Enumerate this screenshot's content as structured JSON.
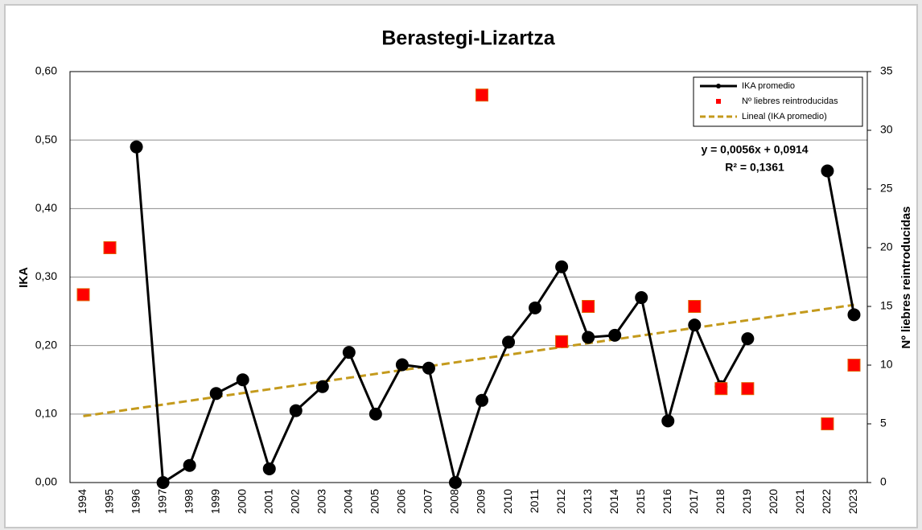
{
  "chart_data": {
    "type": "line",
    "title": "Berastegi-Lizartza",
    "y_label": "IKA",
    "y2_label": "Nº liebres reintroducidas",
    "categories": [
      "1994",
      "1995",
      "1996",
      "1997",
      "1998",
      "1999",
      "2000",
      "2001",
      "2002",
      "2003",
      "2004",
      "2005",
      "2006",
      "2007",
      "2008",
      "2009",
      "2010",
      "2011",
      "2012",
      "2013",
      "2014",
      "2015",
      "2016",
      "2017",
      "2018",
      "2019",
      "2020",
      "2021",
      "2022",
      "2023"
    ],
    "series": [
      {
        "name": "IKA promedio",
        "color": "#000000",
        "values": [
          null,
          null,
          0.49,
          0.0,
          0.025,
          0.13,
          0.15,
          0.02,
          0.105,
          0.14,
          0.19,
          0.1,
          0.172,
          0.167,
          0.0,
          0.12,
          0.205,
          0.255,
          0.315,
          0.212,
          0.215,
          0.27,
          0.09,
          0.23,
          0.14,
          0.21,
          null,
          null,
          0.455,
          0.245
        ]
      },
      {
        "name": "Nº liebres reintroducidas",
        "color": "#ff0000",
        "axis": "y2",
        "values": [
          16,
          20,
          null,
          null,
          null,
          null,
          null,
          null,
          null,
          null,
          null,
          null,
          null,
          null,
          null,
          33,
          null,
          null,
          12,
          15,
          null,
          null,
          null,
          15,
          8,
          8,
          null,
          null,
          5,
          10
        ]
      }
    ],
    "trend": {
      "name": "Lineal (IKA promedio)",
      "color": "#c49a1c",
      "slope": 0.0056,
      "intercept": 0.0914,
      "equation": "y = 0,0056x + 0,0914",
      "r2": "R² = 0,1361",
      "label_color": "#9a9636"
    },
    "ylim": [
      0,
      0.6
    ],
    "yticks": [
      {
        "value": 0,
        "label": "0,00"
      },
      {
        "value": 0.1,
        "label": "0,10"
      },
      {
        "value": 0.2,
        "label": "0,20"
      },
      {
        "value": 0.3,
        "label": "0,30"
      },
      {
        "value": 0.4,
        "label": "0,40"
      },
      {
        "value": 0.5,
        "label": "0,50"
      },
      {
        "value": 0.6,
        "label": "0,60"
      }
    ],
    "y2lim": [
      0,
      35
    ],
    "y2ticks": [
      0,
      5,
      10,
      15,
      20,
      25,
      30,
      35
    ],
    "grid": true,
    "legend": "top-right"
  }
}
